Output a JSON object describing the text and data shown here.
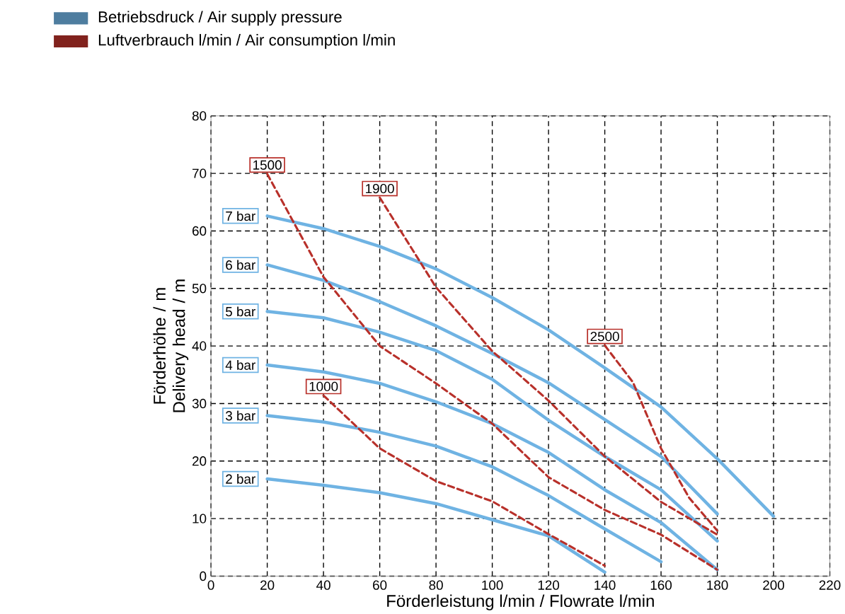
{
  "chart_data": {
    "type": "line",
    "xlabel": "Förderleistung l/min / Flowrate l/min",
    "ylabel": "Förderhöhe / m Delivery head / m",
    "annotations": [
      "Betriebsdruck / Air supply pressure",
      "Luftverbrauch l/min / Air consumption l/min"
    ],
    "xlim": [
      0,
      220
    ],
    "xticks": [
      0,
      20,
      40,
      60,
      80,
      100,
      120,
      140,
      160,
      180,
      200,
      220
    ],
    "ylim": [
      0,
      80
    ],
    "yticks": [
      0,
      10,
      20,
      30,
      40,
      50,
      60,
      70,
      80
    ],
    "grid": true,
    "marker": "none",
    "series": [
      {
        "name": "7 bar",
        "color": "#6fb3e3",
        "line_style": "solid",
        "x": [
          20,
          40,
          60,
          80,
          100,
          120,
          140,
          160,
          180,
          200
        ],
        "values": [
          62.6,
          60.4,
          57.3,
          53.4,
          48.4,
          42.8,
          36.2,
          29.4,
          20.4,
          10.4
        ]
      },
      {
        "name": "6 bar",
        "color": "#6fb3e3",
        "line_style": "solid",
        "x": [
          20,
          40,
          60,
          80,
          100,
          120,
          140,
          160,
          180
        ],
        "values": [
          54.1,
          51.4,
          47.7,
          43.5,
          38.7,
          33.6,
          27.2,
          20.8,
          10.8
        ]
      },
      {
        "name": "5 bar",
        "color": "#6fb3e3",
        "line_style": "solid",
        "x": [
          20,
          40,
          60,
          80,
          100,
          120,
          140,
          160,
          180
        ],
        "values": [
          46,
          44.9,
          42.4,
          39.2,
          34.2,
          27.1,
          20.8,
          15,
          6.1
        ]
      },
      {
        "name": "4 bar",
        "color": "#6fb3e3",
        "line_style": "solid",
        "x": [
          20,
          40,
          60,
          80,
          100,
          120,
          140,
          160,
          180
        ],
        "values": [
          36.7,
          35.5,
          33.5,
          30.3,
          26.5,
          21.5,
          15,
          9.3,
          1.1
        ]
      },
      {
        "name": "3 bar",
        "color": "#6fb3e3",
        "line_style": "solid",
        "x": [
          20,
          40,
          60,
          80,
          100,
          120,
          140,
          160
        ],
        "values": [
          27.9,
          26.8,
          25,
          22.6,
          19,
          14,
          8.2,
          2.5
        ]
      },
      {
        "name": "2 bar",
        "color": "#6fb3e3",
        "line_style": "solid",
        "x": [
          20,
          40,
          60,
          80,
          100,
          120,
          140
        ],
        "values": [
          16.9,
          15.8,
          14.5,
          12.6,
          9.8,
          7,
          0.7
        ]
      },
      {
        "name": "1500",
        "color": "#b8302a",
        "line_style": "dashed",
        "x": [
          20,
          40,
          60,
          80,
          100,
          120,
          140,
          160,
          180
        ],
        "values": [
          69.9,
          52,
          40,
          33.5,
          26.5,
          17.2,
          11.5,
          7.2,
          1.1
        ]
      },
      {
        "name": "1900",
        "color": "#b8302a",
        "line_style": "dashed",
        "x": [
          60,
          80,
          100,
          120,
          140,
          160,
          180
        ],
        "values": [
          65.8,
          50.2,
          39.1,
          30.5,
          20.8,
          12.9,
          7.2
        ]
      },
      {
        "name": "1000",
        "color": "#b8302a",
        "line_style": "dashed",
        "x": [
          40,
          60,
          80,
          100,
          120,
          140
        ],
        "values": [
          31.4,
          22.2,
          16.5,
          13,
          7.3,
          1.8
        ]
      },
      {
        "name": "2500",
        "color": "#b8302a",
        "line_style": "dashed",
        "x": [
          140,
          150,
          160,
          170,
          180
        ],
        "values": [
          40.1,
          33.7,
          22.2,
          13.6,
          7.9
        ]
      }
    ]
  }
}
